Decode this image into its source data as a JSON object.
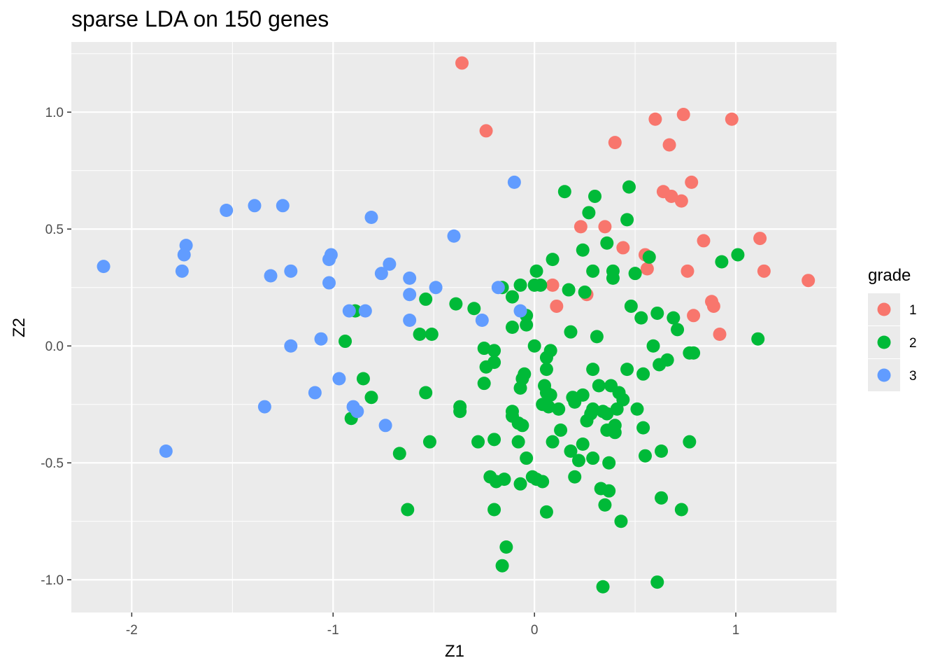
{
  "chart_data": {
    "type": "scatter",
    "title": "sparse LDA on 150 genes",
    "xlabel": "Z1",
    "ylabel": "Z2",
    "xlim": [
      -2.3,
      1.5
    ],
    "ylim": [
      -1.14,
      1.3
    ],
    "x_ticks": [
      -2,
      -1,
      0,
      1
    ],
    "x_tick_labels": [
      "-2",
      "-1",
      "0",
      "1"
    ],
    "y_ticks": [
      -1.0,
      -0.5,
      0.0,
      0.5,
      1.0
    ],
    "y_tick_labels": [
      "-1.0",
      "-0.5",
      "0.0",
      "0.5",
      "1.0"
    ],
    "grid": true,
    "background": "#ebebeb",
    "legend": {
      "title": "grade",
      "position": "right",
      "entries": [
        {
          "label": "1",
          "color": "#f8766d"
        },
        {
          "label": "2",
          "color": "#00ba38"
        },
        {
          "label": "3",
          "color": "#619cff"
        }
      ]
    },
    "series": [
      {
        "name": "1",
        "color": "#f8766d",
        "points": [
          [
            -0.36,
            1.21
          ],
          [
            -0.24,
            0.92
          ],
          [
            0.6,
            0.97
          ],
          [
            0.74,
            0.99
          ],
          [
            0.98,
            0.97
          ],
          [
            0.4,
            0.87
          ],
          [
            0.67,
            0.86
          ],
          [
            0.64,
            0.66
          ],
          [
            0.68,
            0.64
          ],
          [
            0.73,
            0.62
          ],
          [
            0.78,
            0.7
          ],
          [
            0.23,
            0.51
          ],
          [
            0.35,
            0.51
          ],
          [
            0.44,
            0.42
          ],
          [
            0.55,
            0.39
          ],
          [
            0.56,
            0.33
          ],
          [
            0.76,
            0.32
          ],
          [
            0.84,
            0.45
          ],
          [
            1.12,
            0.46
          ],
          [
            1.14,
            0.32
          ],
          [
            1.36,
            0.28
          ],
          [
            0.09,
            0.26
          ],
          [
            0.11,
            0.17
          ],
          [
            0.26,
            0.22
          ],
          [
            0.79,
            0.13
          ],
          [
            0.88,
            0.19
          ],
          [
            0.89,
            0.17
          ],
          [
            0.92,
            0.05
          ]
        ]
      },
      {
        "name": "2",
        "color": "#00ba38",
        "points": [
          [
            0.15,
            0.66
          ],
          [
            0.3,
            0.64
          ],
          [
            0.47,
            0.68
          ],
          [
            0.27,
            0.57
          ],
          [
            0.46,
            0.54
          ],
          [
            0.24,
            0.41
          ],
          [
            0.36,
            0.44
          ],
          [
            0.09,
            0.37
          ],
          [
            0.01,
            0.32
          ],
          [
            0.29,
            0.32
          ],
          [
            0.39,
            0.32
          ],
          [
            0.39,
            0.29
          ],
          [
            0.5,
            0.31
          ],
          [
            0.57,
            0.38
          ],
          [
            0.93,
            0.36
          ],
          [
            1.01,
            0.39
          ],
          [
            -0.16,
            0.25
          ],
          [
            -0.07,
            0.26
          ],
          [
            0.0,
            0.26
          ],
          [
            0.03,
            0.26
          ],
          [
            0.17,
            0.24
          ],
          [
            0.25,
            0.23
          ],
          [
            -0.11,
            0.21
          ],
          [
            -0.54,
            0.2
          ],
          [
            -0.39,
            0.18
          ],
          [
            -0.3,
            0.16
          ],
          [
            -0.89,
            0.15
          ],
          [
            -0.04,
            0.13
          ],
          [
            -0.04,
            0.09
          ],
          [
            -0.11,
            0.08
          ],
          [
            0.48,
            0.17
          ],
          [
            0.53,
            0.12
          ],
          [
            0.61,
            0.14
          ],
          [
            0.69,
            0.12
          ],
          [
            0.71,
            0.07
          ],
          [
            -0.57,
            0.05
          ],
          [
            -0.51,
            0.05
          ],
          [
            -0.94,
            0.02
          ],
          [
            0.18,
            0.06
          ],
          [
            0.31,
            0.04
          ],
          [
            1.11,
            0.03
          ],
          [
            -0.25,
            -0.01
          ],
          [
            -0.2,
            -0.02
          ],
          [
            -0.2,
            -0.07
          ],
          [
            -0.24,
            -0.09
          ],
          [
            0.0,
            0.0
          ],
          [
            0.08,
            -0.02
          ],
          [
            0.06,
            -0.05
          ],
          [
            0.06,
            -0.1
          ],
          [
            -0.05,
            -0.12
          ],
          [
            -0.06,
            -0.14
          ],
          [
            0.05,
            -0.17
          ],
          [
            0.06,
            -0.2
          ],
          [
            0.08,
            -0.21
          ],
          [
            -0.07,
            -0.18
          ],
          [
            0.29,
            -0.1
          ],
          [
            0.46,
            -0.1
          ],
          [
            0.54,
            -0.12
          ],
          [
            0.59,
            0.0
          ],
          [
            0.62,
            -0.08
          ],
          [
            0.66,
            -0.06
          ],
          [
            0.77,
            -0.03
          ],
          [
            0.79,
            -0.03
          ],
          [
            -0.85,
            -0.14
          ],
          [
            -0.25,
            -0.16
          ],
          [
            -0.54,
            -0.2
          ],
          [
            -0.81,
            -0.22
          ],
          [
            -0.37,
            -0.26
          ],
          [
            -0.37,
            -0.28
          ],
          [
            -0.91,
            -0.31
          ],
          [
            0.04,
            -0.25
          ],
          [
            0.07,
            -0.26
          ],
          [
            0.12,
            -0.27
          ],
          [
            0.19,
            -0.22
          ],
          [
            0.2,
            -0.24
          ],
          [
            0.24,
            -0.21
          ],
          [
            0.32,
            -0.17
          ],
          [
            0.38,
            -0.17
          ],
          [
            0.42,
            -0.2
          ],
          [
            0.44,
            -0.23
          ],
          [
            0.29,
            -0.27
          ],
          [
            0.28,
            -0.29
          ],
          [
            0.34,
            -0.28
          ],
          [
            0.36,
            -0.29
          ],
          [
            0.41,
            -0.27
          ],
          [
            0.51,
            -0.27
          ],
          [
            -0.11,
            -0.28
          ],
          [
            -0.11,
            -0.3
          ],
          [
            -0.08,
            -0.33
          ],
          [
            -0.06,
            -0.34
          ],
          [
            0.26,
            -0.32
          ],
          [
            0.13,
            -0.36
          ],
          [
            0.36,
            -0.36
          ],
          [
            0.4,
            -0.34
          ],
          [
            0.4,
            -0.37
          ],
          [
            0.54,
            -0.35
          ],
          [
            -0.28,
            -0.41
          ],
          [
            -0.2,
            -0.4
          ],
          [
            -0.52,
            -0.41
          ],
          [
            -0.67,
            -0.46
          ],
          [
            -0.08,
            -0.41
          ],
          [
            0.09,
            -0.41
          ],
          [
            0.24,
            -0.42
          ],
          [
            0.18,
            -0.45
          ],
          [
            0.22,
            -0.49
          ],
          [
            0.29,
            -0.48
          ],
          [
            0.37,
            -0.5
          ],
          [
            0.55,
            -0.47
          ],
          [
            0.63,
            -0.45
          ],
          [
            0.77,
            -0.41
          ],
          [
            -0.04,
            -0.48
          ],
          [
            -0.22,
            -0.56
          ],
          [
            -0.19,
            -0.58
          ],
          [
            -0.15,
            -0.57
          ],
          [
            -0.07,
            -0.59
          ],
          [
            -0.01,
            -0.56
          ],
          [
            0.01,
            -0.57
          ],
          [
            0.04,
            -0.58
          ],
          [
            0.2,
            -0.56
          ],
          [
            0.33,
            -0.61
          ],
          [
            0.37,
            -0.62
          ],
          [
            -0.63,
            -0.7
          ],
          [
            -0.2,
            -0.7
          ],
          [
            0.06,
            -0.71
          ],
          [
            0.35,
            -0.68
          ],
          [
            0.43,
            -0.75
          ],
          [
            0.63,
            -0.65
          ],
          [
            0.73,
            -0.7
          ],
          [
            -0.14,
            -0.86
          ],
          [
            -0.16,
            -0.94
          ],
          [
            0.34,
            -1.03
          ],
          [
            0.61,
            -1.01
          ]
        ]
      },
      {
        "name": "3",
        "color": "#619cff",
        "points": [
          [
            -2.14,
            0.34
          ],
          [
            -1.83,
            -0.45
          ],
          [
            -1.73,
            0.43
          ],
          [
            -1.74,
            0.39
          ],
          [
            -1.75,
            0.32
          ],
          [
            -1.53,
            0.58
          ],
          [
            -1.39,
            0.6
          ],
          [
            -1.25,
            0.6
          ],
          [
            -1.31,
            0.3
          ],
          [
            -1.21,
            0.32
          ],
          [
            -1.34,
            -0.26
          ],
          [
            -1.21,
            0.0
          ],
          [
            -1.06,
            0.03
          ],
          [
            -1.09,
            -0.2
          ],
          [
            -0.97,
            -0.14
          ],
          [
            -1.01,
            0.39
          ],
          [
            -1.02,
            0.37
          ],
          [
            -1.02,
            0.27
          ],
          [
            -0.81,
            0.55
          ],
          [
            -0.76,
            0.31
          ],
          [
            -0.72,
            0.35
          ],
          [
            -0.62,
            0.29
          ],
          [
            -0.62,
            0.22
          ],
          [
            -0.62,
            0.11
          ],
          [
            -0.49,
            0.25
          ],
          [
            -0.4,
            0.47
          ],
          [
            -0.92,
            0.15
          ],
          [
            -0.84,
            0.15
          ],
          [
            -0.9,
            -0.26
          ],
          [
            -0.88,
            -0.28
          ],
          [
            -0.74,
            -0.34
          ],
          [
            -0.26,
            0.11
          ],
          [
            -0.18,
            0.25
          ],
          [
            -0.1,
            0.7
          ],
          [
            -0.07,
            0.15
          ]
        ]
      }
    ]
  }
}
